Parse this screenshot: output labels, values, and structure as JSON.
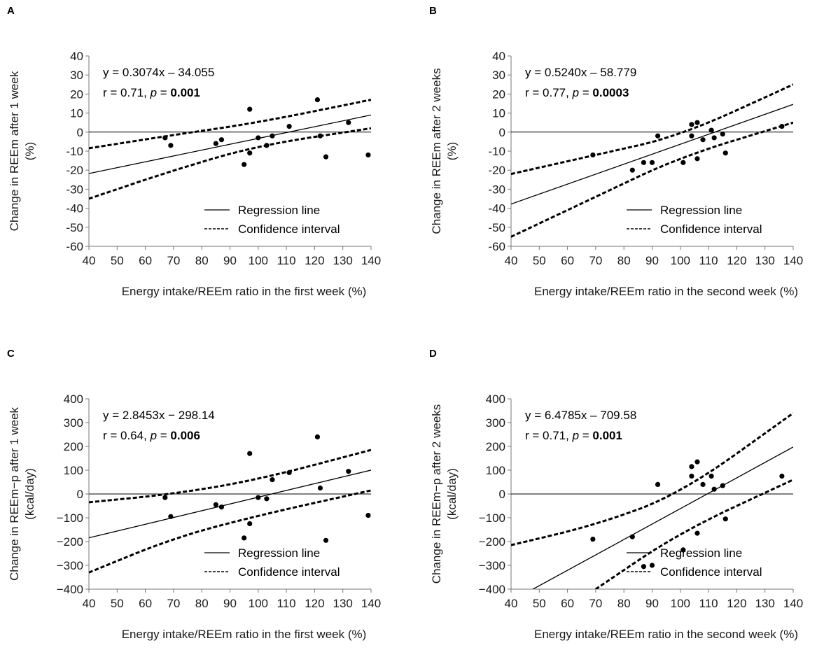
{
  "chart_data": [
    {
      "panel_label": "A",
      "type": "scatter",
      "xlabel": "Energy intake/REEm ratio in the first week (%)",
      "ylabel_line1": "Change in REEm after 1 week",
      "ylabel_line2": "(%)",
      "xlim": [
        40,
        140
      ],
      "ylim": [
        -60,
        40
      ],
      "xticks": [
        "40",
        "50",
        "60",
        "70",
        "80",
        "90",
        "100",
        "110",
        "120",
        "130",
        "140"
      ],
      "yticks": [
        "40",
        "30",
        "20",
        "10",
        "0",
        "-10",
        "-20",
        "-30",
        "-40",
        "-50",
        "-60"
      ],
      "equation": "y = 0.3074x – 34.055",
      "stat_prefix": "r = 0.71, ",
      "stat_p_label": "p",
      "stat_eq": " = ",
      "stat_p_value": "0.001",
      "regression": {
        "slope": 0.3074,
        "intercept": -34.055
      },
      "ci_upper": [
        [
          40,
          -8.5
        ],
        [
          70,
          -1.5
        ],
        [
          100,
          5
        ],
        [
          140,
          17
        ]
      ],
      "ci_lower": [
        [
          40,
          -35
        ],
        [
          70,
          -20
        ],
        [
          100,
          -7
        ],
        [
          140,
          2
        ]
      ],
      "points": [
        {
          "x": 67,
          "y": -3
        },
        {
          "x": 69,
          "y": -7
        },
        {
          "x": 85,
          "y": -6
        },
        {
          "x": 87,
          "y": -4
        },
        {
          "x": 95,
          "y": -17
        },
        {
          "x": 97,
          "y": -11
        },
        {
          "x": 97,
          "y": 12
        },
        {
          "x": 100,
          "y": -3
        },
        {
          "x": 103,
          "y": -7
        },
        {
          "x": 105,
          "y": -2
        },
        {
          "x": 111,
          "y": 3
        },
        {
          "x": 121,
          "y": 17
        },
        {
          "x": 122,
          "y": -2
        },
        {
          "x": 124,
          "y": -13
        },
        {
          "x": 132,
          "y": 5
        },
        {
          "x": 139,
          "y": -12
        }
      ],
      "legend": {
        "regression": "Regression line",
        "ci": "Confidence interval"
      }
    },
    {
      "panel_label": "B",
      "type": "scatter",
      "xlabel": "Energy intake/REEm ratio in the second week (%)",
      "ylabel_line1": "Change in REEm after 2 weeks",
      "ylabel_line2": "(%)",
      "xlim": [
        40,
        140
      ],
      "ylim": [
        -60,
        40
      ],
      "xticks": [
        "40",
        "50",
        "60",
        "70",
        "80",
        "90",
        "100",
        "110",
        "120",
        "130",
        "140"
      ],
      "yticks": [
        "40",
        "30",
        "20",
        "10",
        "0",
        "-10",
        "-20",
        "-30",
        "-40",
        "-50",
        "-60"
      ],
      "equation": "y = 0.5240x – 58.779",
      "stat_prefix": "r = 0.77, ",
      "stat_p_label": "p",
      "stat_eq": " = ",
      "stat_p_value": "0.0003",
      "regression": {
        "slope": 0.524,
        "intercept": -58.779
      },
      "ci_upper": [
        [
          40,
          -22
        ],
        [
          70,
          -12
        ],
        [
          100,
          -2
        ],
        [
          140,
          25
        ]
      ],
      "ci_lower": [
        [
          40,
          -55
        ],
        [
          70,
          -34
        ],
        [
          100,
          -13
        ],
        [
          140,
          5
        ]
      ],
      "points": [
        {
          "x": 69,
          "y": -12
        },
        {
          "x": 83,
          "y": -20
        },
        {
          "x": 87,
          "y": -16
        },
        {
          "x": 90,
          "y": -16
        },
        {
          "x": 92,
          "y": -2
        },
        {
          "x": 101,
          "y": -16
        },
        {
          "x": 104,
          "y": 4
        },
        {
          "x": 104,
          "y": -2
        },
        {
          "x": 106,
          "y": 5
        },
        {
          "x": 106,
          "y": -14
        },
        {
          "x": 108,
          "y": -4
        },
        {
          "x": 111,
          "y": 1
        },
        {
          "x": 112,
          "y": -3
        },
        {
          "x": 115,
          "y": -1
        },
        {
          "x": 116,
          "y": -11
        },
        {
          "x": 136,
          "y": 3
        }
      ],
      "legend": {
        "regression": "Regression line",
        "ci": "Confidence interval"
      }
    },
    {
      "panel_label": "C",
      "type": "scatter",
      "xlabel": "Energy intake/REEm ratio in the first week (%)",
      "ylabel_line1": "Change in REEm−p after 1 week",
      "ylabel_line2": "(kcal/day)",
      "xlim": [
        40,
        140
      ],
      "ylim": [
        -400,
        400
      ],
      "xticks": [
        "40",
        "50",
        "60",
        "70",
        "80",
        "90",
        "100",
        "110",
        "120",
        "130",
        "140"
      ],
      "yticks": [
        "400",
        "300",
        "200",
        "100",
        "0",
        "−100",
        "−200",
        "−300",
        "−400"
      ],
      "equation": "y = 2.8453x − 298.14",
      "stat_prefix": "r = 0.64, ",
      "stat_p_label": "p",
      "stat_eq": " = ",
      "stat_p_value": "0.006",
      "regression": {
        "slope": 2.8453,
        "intercept": -298.14
      },
      "ci_upper": [
        [
          40,
          -35
        ],
        [
          70,
          0
        ],
        [
          100,
          60
        ],
        [
          140,
          185
        ]
      ],
      "ci_lower": [
        [
          40,
          -330
        ],
        [
          70,
          -185
        ],
        [
          100,
          -90
        ],
        [
          140,
          15
        ]
      ],
      "points": [
        {
          "x": 67,
          "y": -15
        },
        {
          "x": 69,
          "y": -95
        },
        {
          "x": 85,
          "y": -45
        },
        {
          "x": 87,
          "y": -55
        },
        {
          "x": 95,
          "y": -185
        },
        {
          "x": 97,
          "y": -125
        },
        {
          "x": 97,
          "y": 170
        },
        {
          "x": 100,
          "y": -15
        },
        {
          "x": 103,
          "y": -20
        },
        {
          "x": 105,
          "y": 60
        },
        {
          "x": 111,
          "y": 90
        },
        {
          "x": 121,
          "y": 240
        },
        {
          "x": 122,
          "y": 25
        },
        {
          "x": 124,
          "y": -195
        },
        {
          "x": 132,
          "y": 95
        },
        {
          "x": 139,
          "y": -90
        }
      ],
      "legend": {
        "regression": "Regression line",
        "ci": "Confidence interval"
      }
    },
    {
      "panel_label": "D",
      "type": "scatter",
      "xlabel": "Energy intake/REEm ratio in the second week (%)",
      "ylabel_line1": "Change in REEm−p after 2 weeks",
      "ylabel_line2": "(kcal/day)",
      "xlim": [
        40,
        140
      ],
      "ylim": [
        -400,
        400
      ],
      "xticks": [
        "40",
        "50",
        "60",
        "70",
        "80",
        "90",
        "100",
        "110",
        "120",
        "130",
        "140"
      ],
      "yticks": [
        "400",
        "300",
        "200",
        "100",
        "0",
        "−100",
        "−200",
        "−300",
        "−400"
      ],
      "equation": "y = 6.4785x – 709.58",
      "stat_prefix": "r = 0.71, ",
      "stat_p_label": "p",
      "stat_eq": " = ",
      "stat_p_value": "0.001",
      "regression": {
        "slope": 6.4785,
        "intercept": -709.58
      },
      "ci_upper": [
        [
          40,
          -215
        ],
        [
          70,
          -130
        ],
        [
          100,
          0
        ],
        [
          140,
          340
        ]
      ],
      "ci_lower": [
        [
          70,
          -400
        ],
        [
          100,
          -160
        ],
        [
          140,
          60
        ]
      ],
      "points": [
        {
          "x": 69,
          "y": -190
        },
        {
          "x": 83,
          "y": -180
        },
        {
          "x": 87,
          "y": -305
        },
        {
          "x": 90,
          "y": -300
        },
        {
          "x": 92,
          "y": 40
        },
        {
          "x": 101,
          "y": -235
        },
        {
          "x": 104,
          "y": 115
        },
        {
          "x": 104,
          "y": 75
        },
        {
          "x": 106,
          "y": 135
        },
        {
          "x": 106,
          "y": -165
        },
        {
          "x": 108,
          "y": 40
        },
        {
          "x": 111,
          "y": 75
        },
        {
          "x": 112,
          "y": 20
        },
        {
          "x": 115,
          "y": 35
        },
        {
          "x": 116,
          "y": -105
        },
        {
          "x": 136,
          "y": 75
        }
      ],
      "legend": {
        "regression": "Regression line",
        "ci": "Confidence interval"
      }
    }
  ]
}
